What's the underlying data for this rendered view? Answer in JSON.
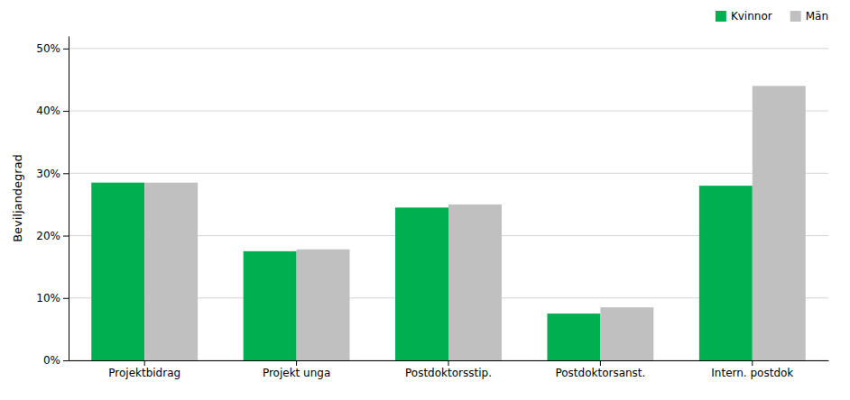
{
  "chart_data": {
    "type": "bar",
    "categories": [
      "Projektbidrag",
      "Projekt unga",
      "Postdoktorsstip.",
      "Postdoktorsanst.",
      "Intern. postdok"
    ],
    "series": [
      {
        "name": "Kvinnor",
        "color": "#00b050",
        "values": [
          0.285,
          0.175,
          0.245,
          0.075,
          0.28
        ]
      },
      {
        "name": "Män",
        "color": "#c0c0c0",
        "values": [
          0.285,
          0.178,
          0.25,
          0.085,
          0.44
        ]
      }
    ],
    "ylabel": "Beviljandegrad",
    "ylim": [
      0,
      0.52
    ],
    "yticks": [
      {
        "value": 0.0,
        "label": "0%"
      },
      {
        "value": 0.1,
        "label": "10%"
      },
      {
        "value": 0.2,
        "label": "20%"
      },
      {
        "value": 0.3,
        "label": "30%"
      },
      {
        "value": 0.4,
        "label": "40%"
      },
      {
        "value": 0.5,
        "label": "50%"
      }
    ],
    "grid": true,
    "legend": "upper right"
  }
}
